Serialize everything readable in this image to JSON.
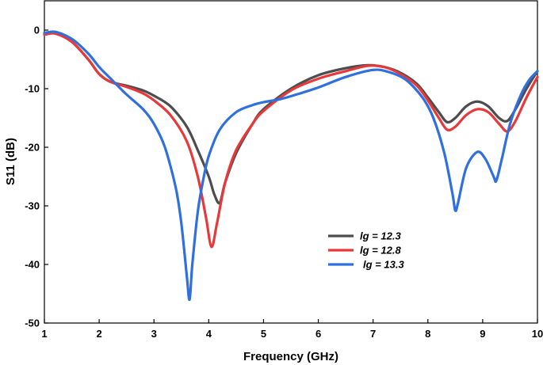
{
  "chart_data": {
    "type": "line",
    "title": "",
    "xlabel": "Frequency (GHz)",
    "ylabel": "S11 (dB)",
    "xlim": [
      1,
      10
    ],
    "ylim": [
      -50,
      5
    ],
    "xticks": [
      1,
      2,
      3,
      4,
      5,
      6,
      7,
      8,
      9,
      10
    ],
    "yticks": [
      0,
      -10,
      -20,
      -30,
      -40,
      -50
    ],
    "grid": false,
    "legend_position": "lower-center",
    "series": [
      {
        "name": "lg = 12.3",
        "color": "#4d4d4d",
        "x": [
          1.0,
          1.2,
          1.5,
          1.8,
          2.0,
          2.2,
          2.5,
          2.8,
          3.0,
          3.3,
          3.6,
          3.8,
          4.0,
          4.1,
          4.2,
          4.3,
          4.5,
          4.8,
          5.0,
          5.5,
          6.0,
          6.5,
          6.9,
          7.2,
          7.5,
          7.8,
          8.0,
          8.2,
          8.35,
          8.5,
          8.7,
          8.9,
          9.1,
          9.3,
          9.45,
          9.6,
          9.8,
          10.0
        ],
        "y": [
          -0.5,
          -0.5,
          -2.0,
          -5.0,
          -7.5,
          -8.8,
          -9.5,
          -10.3,
          -11.2,
          -13.0,
          -16.5,
          -20.5,
          -25.0,
          -28.0,
          -29.5,
          -26.0,
          -21.0,
          -16.0,
          -13.5,
          -10.0,
          -7.7,
          -6.5,
          -6.0,
          -6.3,
          -7.3,
          -9.2,
          -11.5,
          -14.0,
          -15.7,
          -15.0,
          -13.0,
          -12.2,
          -13.0,
          -15.0,
          -15.5,
          -13.5,
          -10.0,
          -7.0
        ]
      },
      {
        "name": "lg = 12.8",
        "color": "#e8393a",
        "x": [
          1.0,
          1.2,
          1.5,
          1.8,
          2.0,
          2.2,
          2.5,
          2.8,
          3.0,
          3.3,
          3.6,
          3.8,
          3.95,
          4.05,
          4.15,
          4.3,
          4.5,
          4.8,
          5.0,
          5.5,
          6.0,
          6.5,
          6.9,
          7.2,
          7.5,
          7.8,
          8.0,
          8.2,
          8.35,
          8.5,
          8.7,
          8.9,
          9.1,
          9.3,
          9.45,
          9.6,
          9.8,
          10.0
        ],
        "y": [
          -0.8,
          -0.6,
          -2.0,
          -5.0,
          -7.5,
          -8.8,
          -9.7,
          -10.8,
          -12.0,
          -14.5,
          -19.0,
          -25.0,
          -32.0,
          -37.0,
          -33.0,
          -26.0,
          -20.5,
          -16.0,
          -13.8,
          -10.3,
          -8.3,
          -7.0,
          -6.1,
          -6.3,
          -7.5,
          -9.5,
          -12.0,
          -15.0,
          -17.0,
          -16.5,
          -14.5,
          -13.5,
          -14.0,
          -16.0,
          -17.3,
          -15.5,
          -11.5,
          -8.0
        ]
      },
      {
        "name": "lg = 13.3",
        "color": "#2f6fde",
        "x": [
          1.0,
          1.2,
          1.5,
          1.8,
          2.0,
          2.2,
          2.5,
          2.8,
          3.0,
          3.2,
          3.4,
          3.5,
          3.6,
          3.65,
          3.7,
          3.8,
          3.9,
          4.0,
          4.2,
          4.5,
          4.8,
          5.0,
          5.3,
          5.6,
          6.0,
          6.5,
          7.0,
          7.3,
          7.6,
          7.9,
          8.1,
          8.3,
          8.45,
          8.5,
          8.55,
          8.7,
          8.9,
          9.05,
          9.2,
          9.25,
          9.35,
          9.5,
          9.7,
          9.85,
          10.0
        ],
        "y": [
          -0.5,
          -0.3,
          -1.5,
          -4.0,
          -6.3,
          -8.2,
          -11.0,
          -13.5,
          -16.0,
          -20.0,
          -27.0,
          -33.0,
          -42.0,
          -46.0,
          -40.0,
          -31.0,
          -25.5,
          -21.5,
          -17.0,
          -14.0,
          -12.8,
          -12.3,
          -11.8,
          -11.0,
          -9.8,
          -8.0,
          -6.8,
          -7.2,
          -8.5,
          -11.5,
          -15.0,
          -21.0,
          -28.0,
          -30.8,
          -29.5,
          -23.5,
          -20.8,
          -22.0,
          -25.0,
          -25.7,
          -22.0,
          -16.0,
          -11.0,
          -8.5,
          -7.0
        ]
      }
    ]
  }
}
